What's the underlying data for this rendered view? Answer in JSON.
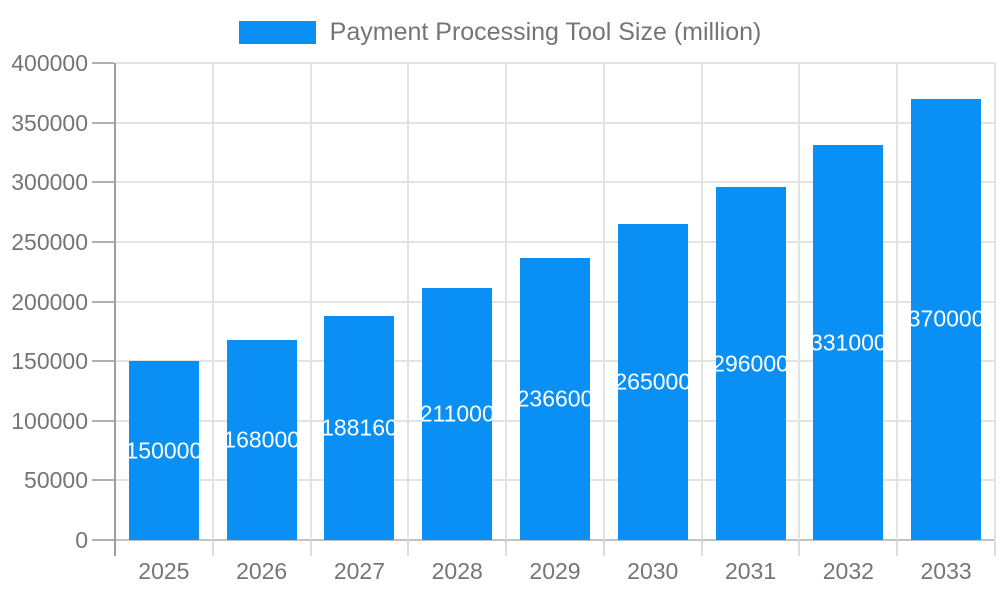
{
  "legend": {
    "label": "Payment Processing Tool Size (million)"
  },
  "colors": {
    "bar": "#0a90f5",
    "text": "#757575",
    "grid": "#e3e3e3",
    "baseline": "#c2c2c2",
    "y_axis_line": "#9e9e9e",
    "y_tick": "#b0b0b0",
    "x_tick": "#dcdcdc",
    "bar_label_text": "#ffffff",
    "background": "#ffffff"
  },
  "chart_data": {
    "type": "bar",
    "title": "",
    "xlabel": "",
    "ylabel": "",
    "legend_position": "top-center",
    "grid": true,
    "categories": [
      "2025",
      "2026",
      "2027",
      "2028",
      "2029",
      "2030",
      "2031",
      "2032",
      "2033"
    ],
    "series": [
      {
        "name": "Payment Processing Tool Size (million)",
        "values": [
          150000,
          168000,
          188160,
          211000,
          236600,
          265000,
          296000,
          331000,
          370000
        ]
      }
    ],
    "value_labels": [
      "150000",
      "168000",
      "188160",
      "211000",
      "236600",
      "265000",
      "296000",
      "331000",
      "370000"
    ],
    "ylim": [
      0,
      400000
    ],
    "ytick_step": 50000,
    "yticks": [
      0,
      50000,
      100000,
      150000,
      200000,
      250000,
      300000,
      350000,
      400000
    ],
    "ytick_labels": [
      "0",
      "50000",
      "100000",
      "150000",
      "200000",
      "250000",
      "300000",
      "350000",
      "400000"
    ]
  }
}
